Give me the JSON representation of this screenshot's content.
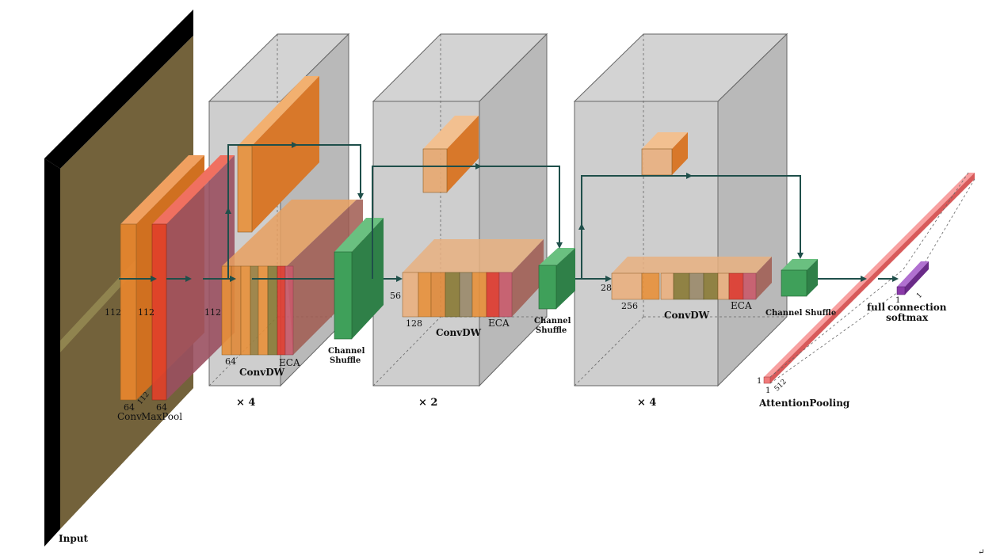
{
  "labels": {
    "input": "Input",
    "conv": "Conv",
    "maxpool": "MaxPool",
    "d112a": "112",
    "d112b": "112",
    "d112c": "112",
    "d112d": "112",
    "d64a": "64",
    "d64b": "64",
    "d64c": "64",
    "convdw1": "ConvDW",
    "eca1": "ECA",
    "channel1": "Channel",
    "shuffle1": "Shuffle",
    "rep1": "× 4",
    "d56": "56",
    "d128": "128",
    "convdw2": "ConvDW",
    "eca2": "ECA",
    "channel2": "Channel",
    "shuffle2": "Shuffle",
    "rep2": "× 2",
    "d28": "28",
    "d256": "256",
    "convdw3": "ConvDW",
    "eca3": "ECA",
    "cshuffle3": "Channel Shuffle",
    "rep3": "× 4",
    "ap1a": "1",
    "ap1b": "1",
    "ap512": "512",
    "attentionpooling": "AttentionPooling",
    "fc1": "1",
    "fc2": "1",
    "full": "full",
    "connection": "connection",
    "softmax": "softmax"
  },
  "colors": {
    "input_face": "#6b5a30",
    "input_side": "#000000",
    "conv": "#e8862e",
    "maxpool": "#e0402a",
    "pool_tint": "#b05a6a",
    "convdw": "#e8903a",
    "eca_red": "#e03a2e",
    "eca_pink": "#c95a6a",
    "olive": "#8a7a35",
    "shuffle": "#3fa05a",
    "stage_box": "#c8c8c8",
    "arrow": "#1f4f4a",
    "attention": "#f07a7a",
    "fc": "#8a3aa8"
  }
}
